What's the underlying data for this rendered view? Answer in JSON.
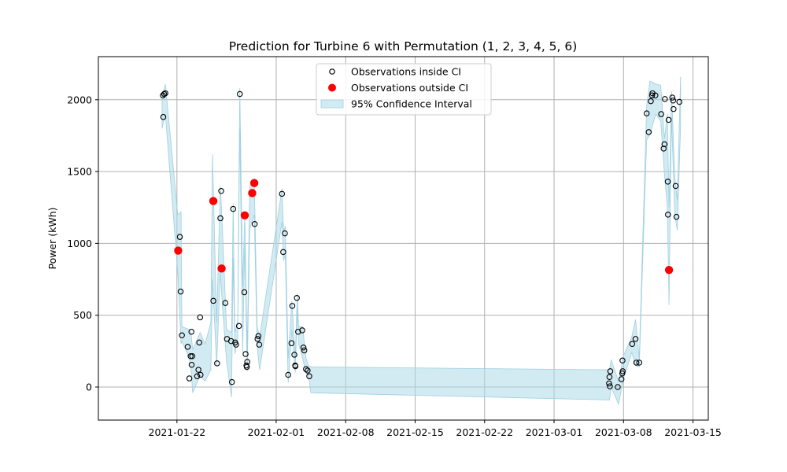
{
  "chart_data": {
    "type": "scatter",
    "title": "Prediction for Turbine 6 with Permutation (1, 2, 3, 4, 5, 6)",
    "xlabel": "",
    "ylabel": "Power (kWh)",
    "xlim": [
      "2021-01-14T02:00",
      "2021-03-16T13:00"
    ],
    "ylim": [
      -230,
      2300
    ],
    "grid": true,
    "x_ticks": [
      "2021-01-22",
      "2021-02-01",
      "2021-02-08",
      "2021-02-15",
      "2021-02-22",
      "2021-03-01",
      "2021-03-08",
      "2021-03-15"
    ],
    "y_ticks": [
      0,
      500,
      1000,
      1500,
      2000
    ],
    "legend": {
      "position": "top-center",
      "entries": [
        {
          "label": "Observations inside CI",
          "style": "hollow-circle"
        },
        {
          "label": "Observations outside CI",
          "style": "red-dot"
        },
        {
          "label": "95% Confidence Interval",
          "style": "band"
        }
      ]
    },
    "colors": {
      "inside_edge": "#000000",
      "outside_fill": "#ff0000",
      "band_fill": "#add8e6",
      "band_line": "#9fd0e2",
      "grid": "#b0b0b0"
    },
    "series": [
      {
        "name": "Observations inside CI",
        "points": [
          [
            "2021-01-20T14:00",
            2030
          ],
          [
            "2021-01-20T17:00",
            2040
          ],
          [
            "2021-01-20T20:00",
            2045
          ],
          [
            "2021-01-20T15:00",
            1880
          ],
          [
            "2021-01-22T07:00",
            1045
          ],
          [
            "2021-01-22T09:00",
            665
          ],
          [
            "2021-01-22T12:00",
            360
          ],
          [
            "2021-01-23T02:00",
            280
          ],
          [
            "2021-01-23T06:00",
            60
          ],
          [
            "2021-01-23T09:00",
            215
          ],
          [
            "2021-01-23T13:00",
            215
          ],
          [
            "2021-01-23T11:00",
            385
          ],
          [
            "2021-01-23T11:30",
            155
          ],
          [
            "2021-01-24T01:00",
            75
          ],
          [
            "2021-01-24T04:00",
            120
          ],
          [
            "2021-01-24T06:00",
            310
          ],
          [
            "2021-01-24T08:00",
            485
          ],
          [
            "2021-01-24T09:00",
            85
          ],
          [
            "2021-01-25T16:00",
            600
          ],
          [
            "2021-01-26T01:00",
            165
          ],
          [
            "2021-01-26T09:00",
            1175
          ],
          [
            "2021-01-26T11:00",
            1365
          ],
          [
            "2021-01-26T21:00",
            585
          ],
          [
            "2021-01-27T01:00",
            335
          ],
          [
            "2021-01-27T11:00",
            320
          ],
          [
            "2021-01-27T13:00",
            35
          ],
          [
            "2021-01-27T16:00",
            1240
          ],
          [
            "2021-01-27T21:00",
            310
          ],
          [
            "2021-01-27T23:00",
            295
          ],
          [
            "2021-01-28T06:00",
            425
          ],
          [
            "2021-01-28T08:00",
            2040
          ],
          [
            "2021-01-28T19:00",
            660
          ],
          [
            "2021-01-28T22:00",
            230
          ],
          [
            "2021-01-29T00:00",
            150
          ],
          [
            "2021-01-29T01:00",
            140
          ],
          [
            "2021-01-29T02:00",
            175
          ],
          [
            "2021-01-29T12:00",
            1350
          ],
          [
            "2021-01-29T20:00",
            1135
          ],
          [
            "2021-01-30T03:00",
            335
          ],
          [
            "2021-01-30T05:00",
            355
          ],
          [
            "2021-01-30T07:00",
            295
          ],
          [
            "2021-02-01T14:00",
            1345
          ],
          [
            "2021-02-01T17:00",
            940
          ],
          [
            "2021-02-01T21:00",
            1070
          ],
          [
            "2021-02-02T05:00",
            85
          ],
          [
            "2021-02-02T13:00",
            305
          ],
          [
            "2021-02-02T15:00",
            565
          ],
          [
            "2021-02-02T20:00",
            225
          ],
          [
            "2021-02-02T22:00",
            150
          ],
          [
            "2021-02-02T22:30",
            145
          ],
          [
            "2021-02-03T02:00",
            620
          ],
          [
            "2021-02-03T05:00",
            385
          ],
          [
            "2021-02-03T15:00",
            395
          ],
          [
            "2021-02-03T18:00",
            275
          ],
          [
            "2021-02-03T20:00",
            255
          ],
          [
            "2021-02-04T00:00",
            125
          ],
          [
            "2021-02-04T04:00",
            115
          ],
          [
            "2021-02-04T08:00",
            75
          ],
          [
            "2021-03-06T14:00",
            70
          ],
          [
            "2021-03-06T16:00",
            110
          ],
          [
            "2021-03-06T13:00",
            25
          ],
          [
            "2021-03-06T15:00",
            5
          ],
          [
            "2021-03-07T10:00",
            0
          ],
          [
            "2021-03-07T19:00",
            55
          ],
          [
            "2021-03-07T21:00",
            95
          ],
          [
            "2021-03-07T22:00",
            110
          ],
          [
            "2021-03-07T21:30",
            185
          ],
          [
            "2021-03-08T21:00",
            300
          ],
          [
            "2021-03-09T07:00",
            170
          ],
          [
            "2021-03-09T05:00",
            335
          ],
          [
            "2021-03-09T14:00",
            170
          ],
          [
            "2021-03-10T08:00",
            1905
          ],
          [
            "2021-03-10T13:00",
            1775
          ],
          [
            "2021-03-10T18:00",
            1990
          ],
          [
            "2021-03-10T21:00",
            2030
          ],
          [
            "2021-03-10T22:00",
            2045
          ],
          [
            "2021-03-11T05:00",
            2030
          ],
          [
            "2021-03-11T19:00",
            1900
          ],
          [
            "2021-03-12T03:00",
            1690
          ],
          [
            "2021-03-12T01:00",
            1660
          ],
          [
            "2021-03-12T04:00",
            2005
          ],
          [
            "2021-03-12T11:00",
            1430
          ],
          [
            "2021-03-12T13:00",
            1860
          ],
          [
            "2021-03-12T11:30",
            1200
          ],
          [
            "2021-03-12T22:00",
            2015
          ],
          [
            "2021-03-13T00:00",
            1995
          ],
          [
            "2021-03-13T01:00",
            1935
          ],
          [
            "2021-03-13T06:00",
            1400
          ],
          [
            "2021-03-13T08:00",
            1185
          ],
          [
            "2021-03-13T15:00",
            1985
          ]
        ]
      },
      {
        "name": "Observations outside CI",
        "points": [
          [
            "2021-01-22T03:00",
            950
          ],
          [
            "2021-01-25T16:00",
            1295
          ],
          [
            "2021-01-26T12:00",
            825
          ],
          [
            "2021-01-28T20:00",
            1195
          ],
          [
            "2021-01-29T14:00",
            1350
          ],
          [
            "2021-01-29T19:00",
            1420
          ],
          [
            "2021-03-12T14:00",
            815
          ]
        ]
      },
      {
        "name": "95% Confidence Interval",
        "band": [
          [
            "2021-01-20T12:00",
            1800,
            2020
          ],
          [
            "2021-01-20T20:00",
            1900,
            2110
          ],
          [
            "2021-01-22T02:00",
            800,
            1200
          ],
          [
            "2021-01-22T10:00",
            300,
            1220
          ],
          [
            "2021-01-22T12:00",
            320,
            420
          ],
          [
            "2021-01-23T06:00",
            200,
            400
          ],
          [
            "2021-01-23T10:00",
            130,
            380
          ],
          [
            "2021-01-23T14:00",
            -40,
            260
          ],
          [
            "2021-01-24T08:00",
            80,
            380
          ],
          [
            "2021-01-24T20:00",
            40,
            300
          ],
          [
            "2021-01-25T10:00",
            120,
            450
          ],
          [
            "2021-01-25T14:00",
            750,
            1620
          ],
          [
            "2021-01-26T00:00",
            150,
            450
          ],
          [
            "2021-01-26T09:00",
            800,
            1400
          ],
          [
            "2021-01-26T14:00",
            560,
            1100
          ],
          [
            "2021-01-27T00:00",
            180,
            400
          ],
          [
            "2021-01-27T12:00",
            -70,
            380
          ],
          [
            "2021-01-27T16:00",
            900,
            1280
          ],
          [
            "2021-01-27T20:00",
            230,
            380
          ],
          [
            "2021-01-28T03:00",
            350,
            460
          ],
          [
            "2021-01-28T08:00",
            1800,
            2080
          ],
          [
            "2021-01-28T15:00",
            240,
            700
          ],
          [
            "2021-01-28T20:00",
            1000,
            1200
          ],
          [
            "2021-01-29T02:00",
            110,
            250
          ],
          [
            "2021-01-29T08:00",
            1100,
            1400
          ],
          [
            "2021-01-29T19:00",
            1200,
            1450
          ],
          [
            "2021-01-30T02:00",
            280,
            420
          ],
          [
            "2021-01-30T08:00",
            120,
            350
          ],
          [
            "2021-02-01T14:00",
            1150,
            1380
          ],
          [
            "2021-02-01T18:00",
            880,
            1080
          ],
          [
            "2021-02-01T22:00",
            920,
            1120
          ],
          [
            "2021-02-02T05:00",
            30,
            200
          ],
          [
            "2021-02-02T14:00",
            400,
            600
          ],
          [
            "2021-02-02T22:00",
            100,
            200
          ],
          [
            "2021-02-03T03:00",
            550,
            650
          ],
          [
            "2021-02-03T06:00",
            300,
            420
          ],
          [
            "2021-02-03T16:00",
            200,
            420
          ],
          [
            "2021-02-04T00:00",
            100,
            200
          ],
          [
            "2021-02-04T06:00",
            80,
            150
          ],
          [
            "2021-02-04T12:00",
            -40,
            140
          ],
          [
            "2021-03-06T14:00",
            -90,
            120
          ],
          [
            "2021-03-06T18:00",
            0,
            190
          ],
          [
            "2021-03-07T12:00",
            -120,
            40
          ],
          [
            "2021-03-08T00:00",
            60,
            220
          ],
          [
            "2021-03-08T20:00",
            240,
            350
          ],
          [
            "2021-03-09T05:00",
            150,
            470
          ],
          [
            "2021-03-09T14:00",
            140,
            200
          ],
          [
            "2021-03-10T08:00",
            1720,
            1960
          ],
          [
            "2021-03-10T16:00",
            1760,
            2130
          ],
          [
            "2021-03-11T06:00",
            1900,
            2110
          ],
          [
            "2021-03-11T18:00",
            1850,
            2100
          ],
          [
            "2021-03-12T03:00",
            1480,
            1730
          ],
          [
            "2021-03-12T10:00",
            1250,
            1900
          ],
          [
            "2021-03-12T14:00",
            570,
            1250
          ],
          [
            "2021-03-12T20:00",
            1880,
            2060
          ],
          [
            "2021-03-13T04:00",
            1200,
            1460
          ],
          [
            "2021-03-13T10:00",
            1090,
            1300
          ],
          [
            "2021-03-13T18:00",
            1820,
            2160
          ]
        ]
      }
    ]
  }
}
